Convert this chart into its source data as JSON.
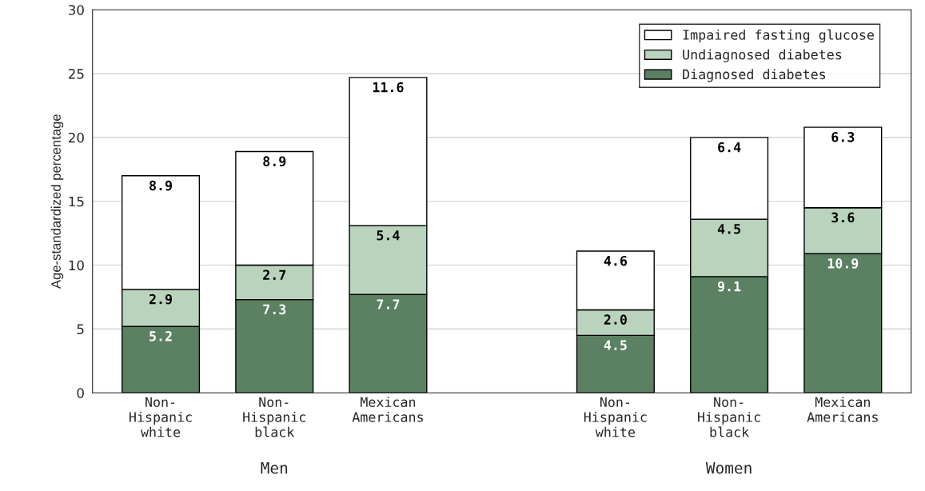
{
  "chart_data": {
    "type": "bar",
    "stacked": true,
    "ylabel": "Age-standardized percentage",
    "categories": [
      "Non-\nHispanic\nwhite",
      "Non-\nHispanic\nblack",
      "Mexican\nAmericans",
      null,
      "Non-\nHispanic\nwhite",
      "Non-\nHispanic\nblack",
      "Mexican\nAmericans"
    ],
    "series": [
      {
        "name": "Diagnosed diabetes",
        "color": "#5b8062",
        "values": [
          5.2,
          7.3,
          7.7,
          null,
          4.5,
          9.1,
          10.9
        ],
        "value_labels": [
          "5.2",
          "7.3",
          "7.7",
          null,
          "4.5",
          "9.1",
          "10.9"
        ]
      },
      {
        "name": "Undiagnosed diabetes",
        "color": "#b9d3bd",
        "values": [
          2.9,
          2.7,
          5.4,
          null,
          2.0,
          4.5,
          3.6
        ],
        "value_labels": [
          "2.9",
          "2.7",
          "5.4",
          null,
          "2.0",
          "4.5",
          "3.6"
        ]
      },
      {
        "name": "Impaired fasting glucose",
        "color": "#ffffff",
        "values": [
          8.9,
          8.9,
          11.6,
          null,
          4.6,
          6.4,
          6.3
        ],
        "value_labels": [
          "8.9",
          "8.9",
          "11.6",
          null,
          "4.6",
          "6.4",
          "6.3"
        ]
      }
    ],
    "ylim": [
      0,
      30
    ],
    "yticks": [
      0,
      5,
      10,
      15,
      20,
      25,
      30
    ],
    "grid": "y",
    "legend": "top right",
    "annotations": [
      "Men",
      "Women"
    ]
  }
}
